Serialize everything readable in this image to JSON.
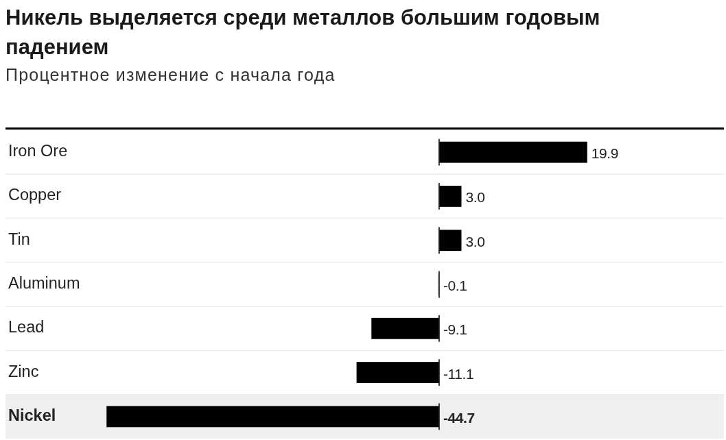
{
  "chart_data": {
    "type": "bar",
    "orientation": "horizontal",
    "title": "Никель выделяется среди металлов большим годовым падением",
    "subtitle": "Процентное изменение с начала года",
    "categories": [
      "Iron Ore",
      "Copper",
      "Tin",
      "Aluminum",
      "Lead",
      "Zinc",
      "Nickel"
    ],
    "values": [
      19.9,
      3.0,
      3.0,
      -0.1,
      -9.1,
      -11.1,
      -44.7
    ],
    "value_labels": [
      "19.9",
      "3.0",
      "3.0",
      "-0.1",
      "-9.1",
      "-11.1",
      "-44.7"
    ],
    "color": "#000000",
    "xlim": [
      -45,
      38
    ],
    "tick_labels": "y",
    "grid": "y",
    "bands": [
      {
        "axis": "y",
        "from": "Nickel",
        "to": "Nickel",
        "color": "#efefef"
      }
    ]
  }
}
